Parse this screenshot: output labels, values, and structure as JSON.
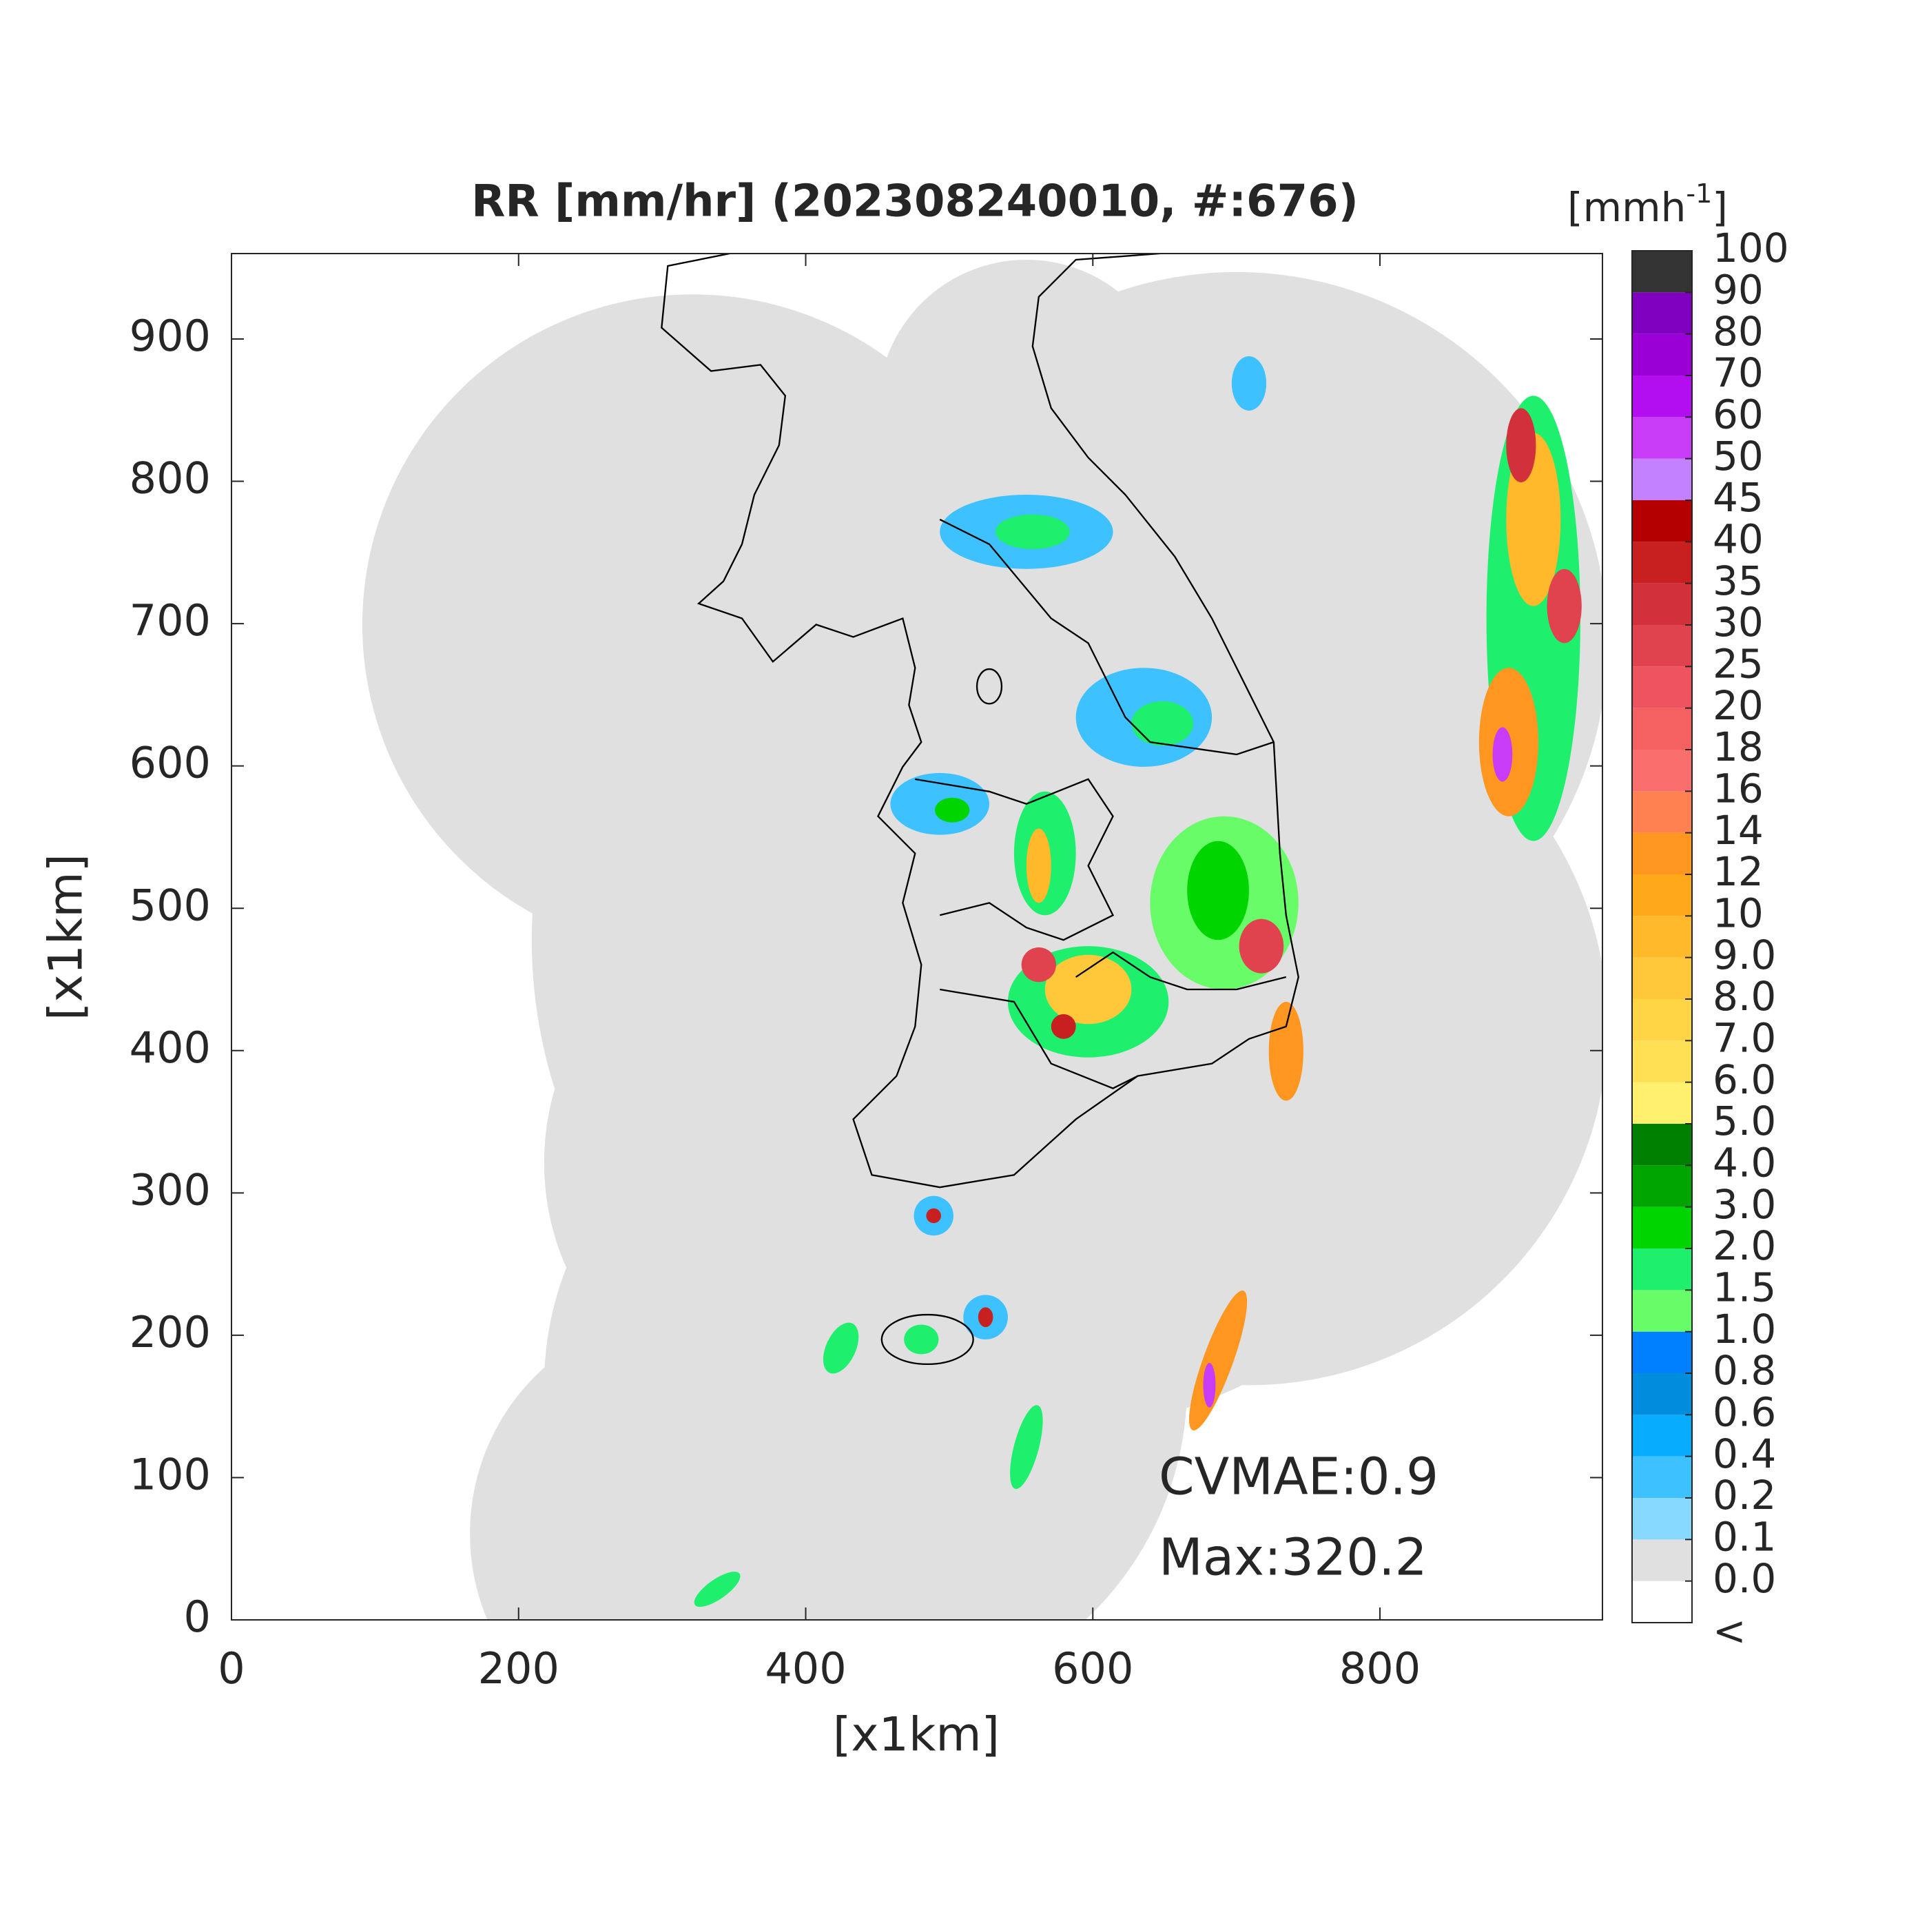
{
  "chart_data": {
    "type": "radar-map",
    "title": "RR [mm/hr] (202308240010, #:676)",
    "xlabel": "[x1km]",
    "ylabel": "[x1km]",
    "xlim": [
      0,
      955
    ],
    "ylim": [
      0,
      960
    ],
    "xticks": [
      0,
      200,
      400,
      600,
      800
    ],
    "yticks": [
      0,
      100,
      200,
      300,
      400,
      500,
      600,
      700,
      800,
      900
    ],
    "annotations": [
      "CVMAE:0.9",
      "Max:320.2"
    ],
    "colorbar": {
      "label": {
        "text": "[mmh",
        "superscript": "-1",
        "close": "]"
      },
      "ticks": [
        "<",
        {
          "value": 0,
          "label": "0.0"
        },
        {
          "value": 0.1,
          "label": "0.1"
        },
        {
          "value": 0.2,
          "label": "0.2"
        },
        {
          "value": 0.4,
          "label": "0.4"
        },
        {
          "value": 0.6,
          "label": "0.6"
        },
        {
          "value": 0.8,
          "label": "0.8"
        },
        {
          "value": 1,
          "label": "1.0"
        },
        {
          "value": 1.5,
          "label": "1.5"
        },
        {
          "value": 2,
          "label": "2.0"
        },
        {
          "value": 3,
          "label": "3.0"
        },
        {
          "value": 4,
          "label": "4.0"
        },
        {
          "value": 5,
          "label": "5.0"
        },
        {
          "value": 6,
          "label": "6.0"
        },
        {
          "value": 7,
          "label": "7.0"
        },
        {
          "value": 8,
          "label": "8.0"
        },
        {
          "value": 9,
          "label": "9.0"
        },
        10,
        12,
        14,
        16,
        18,
        20,
        25,
        30,
        35,
        40,
        45,
        50,
        60,
        70,
        80,
        90,
        100
      ],
      "colors": [
        "#ffffff",
        "#e0e0e0",
        "#87d9ff",
        "#3ec1ff",
        "#07abff",
        "#008dde",
        "#007fff",
        "#69fc69",
        "#1ef06e",
        "#00d500",
        "#00a400",
        "#008000",
        "#fff06e",
        "#ffe055",
        "#ffd445",
        "#ffc83a",
        "#ffb92a",
        "#ffa81a",
        "#ff9620",
        "#ff8050",
        "#fa6e6e",
        "#f56060",
        "#ed5460",
        "#e0424e",
        "#d2303a",
        "#c82020",
        "#b40000",
        "#c481ff",
        "#c83cf7",
        "#b30ef0",
        "#9a00d5",
        "#8000bf",
        "#333333"
      ]
    }
  }
}
